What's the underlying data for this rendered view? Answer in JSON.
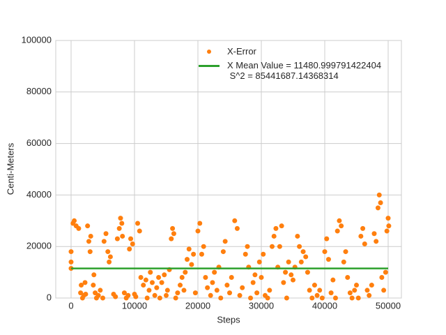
{
  "chart_data": {
    "type": "scatter",
    "xlabel": "Steps",
    "ylabel": "Centi-Meters",
    "xlim": [
      -2418,
      52088
    ],
    "ylim": [
      0,
      100000
    ],
    "xticks": [
      0,
      10000,
      20000,
      30000,
      40000,
      50000
    ],
    "yticks": [
      0,
      20000,
      40000,
      60000,
      80000,
      100000
    ],
    "grid": true,
    "legend": "upper center",
    "series": [
      {
        "name": "X-Error",
        "type": "scatter",
        "color": "#ff7f0e",
        "x": [
          0,
          0,
          0,
          300,
          500,
          800,
          1200,
          1500,
          1600,
          1800,
          2000,
          2200,
          2300,
          2600,
          2800,
          3000,
          3100,
          3500,
          3600,
          3800,
          4000,
          4300,
          4600,
          5000,
          5200,
          5500,
          5800,
          6000,
          6200,
          6700,
          7000,
          7300,
          7600,
          7800,
          8000,
          8100,
          8400,
          8700,
          9000,
          9200,
          9400,
          9700,
          10000,
          10200,
          10500,
          10800,
          11000,
          11400,
          11800,
          12000,
          12300,
          12500,
          12800,
          13200,
          13500,
          13800,
          14000,
          14300,
          14700,
          15000,
          15200,
          15500,
          15800,
          16000,
          16200,
          16500,
          16800,
          17200,
          17500,
          17800,
          18000,
          18300,
          18600,
          19000,
          19300,
          19600,
          20000,
          20300,
          20600,
          20900,
          21200,
          21500,
          22000,
          22300,
          22600,
          23000,
          23300,
          23600,
          24000,
          24300,
          24600,
          25000,
          25300,
          25800,
          26200,
          26600,
          27000,
          27500,
          27800,
          28000,
          28300,
          28700,
          29000,
          29300,
          29700,
          30000,
          30300,
          30600,
          31000,
          31300,
          31700,
          32000,
          32300,
          32600,
          32900,
          33200,
          33500,
          33800,
          34000,
          34300,
          34700,
          35000,
          35300,
          35700,
          36000,
          36300,
          36600,
          37000,
          37300,
          37600,
          38000,
          38400,
          38800,
          39200,
          39600,
          40000,
          40300,
          40600,
          41000,
          41300,
          41700,
          42000,
          42300,
          42600,
          43000,
          43300,
          43600,
          44000,
          44300,
          44700,
          45000,
          45300,
          45700,
          46000,
          46300,
          46700,
          47000,
          47400,
          47800,
          48100,
          48400,
          48600,
          48800,
          49000,
          49300,
          49600,
          49800,
          50000,
          50100
        ],
        "values": [
          11500,
          14000,
          18000,
          29000,
          30000,
          28000,
          27000,
          2000,
          5000,
          0,
          1000,
          6000,
          1500,
          28000,
          22000,
          18000,
          24000,
          5000,
          9000,
          2000,
          0,
          1000,
          3000,
          0,
          22000,
          25000,
          18000,
          14000,
          16000,
          1500,
          500,
          23000,
          27000,
          31000,
          29000,
          24000,
          2000,
          0,
          1000,
          19000,
          23000,
          21000,
          1500,
          500,
          29000,
          26000,
          8000,
          5000,
          7000,
          0,
          3000,
          10000,
          6000,
          1000,
          4000,
          8000,
          0,
          6000,
          9000,
          1000,
          3000,
          11000,
          23000,
          27000,
          25000,
          0,
          2000,
          5000,
          8000,
          3000,
          10000,
          15000,
          19000,
          13000,
          17000,
          2000,
          26000,
          29000,
          17000,
          20000,
          8000,
          4000,
          1000,
          6000,
          10000,
          3000,
          12000,
          0,
          18000,
          22000,
          5000,
          2000,
          8000,
          30000,
          27000,
          1000,
          4000,
          17000,
          20000,
          12000,
          0,
          6000,
          9000,
          2000,
          14000,
          8000,
          17000,
          1000,
          0,
          3000,
          20000,
          24000,
          27000,
          12000,
          20000,
          28000,
          6000,
          10000,
          0,
          14000,
          9000,
          7000,
          12000,
          24000,
          20000,
          14000,
          18000,
          16000,
          10000,
          3000,
          0,
          5000,
          1000,
          3000,
          0,
          18000,
          23000,
          15000,
          2000,
          7000,
          0,
          26000,
          30000,
          28000,
          14000,
          18000,
          8000,
          2000,
          0,
          3000,
          5000,
          0,
          24000,
          27000,
          21000,
          3000,
          1000,
          5000,
          25000,
          22000,
          35000,
          40000,
          37000,
          8000,
          3000,
          10000,
          26000,
          31000,
          28000
        ]
      },
      {
        "name": "X Mean Value = 11480.999791422404\n S^2 = 85441687.14368314",
        "type": "line",
        "color": "#2ca02c",
        "x": [
          0,
          50000
        ],
        "values": [
          11480.999791422404,
          11480.999791422404
        ]
      }
    ]
  }
}
